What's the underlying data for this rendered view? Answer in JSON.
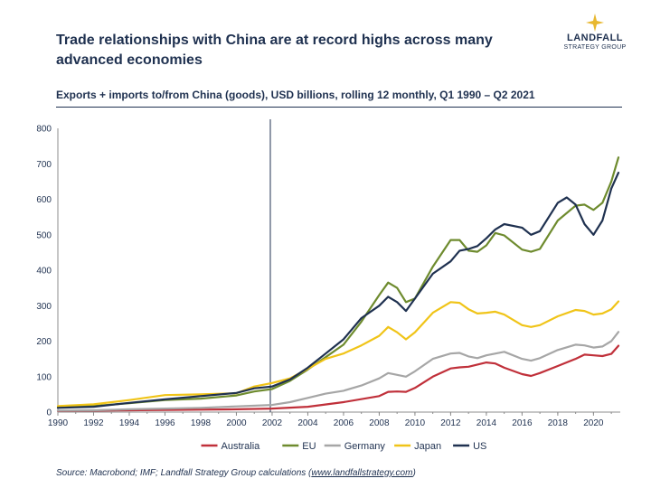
{
  "header": {
    "title": "Trade relationships with China are at record highs across many advanced economies",
    "subtitle": "Exports + imports to/from China (goods), USD billions, rolling 12 monthly, Q1 1990 – Q2 2021"
  },
  "logo": {
    "name": "LANDFALL",
    "tagline": "STRATEGY GROUP",
    "icon": "star-icon",
    "accent": "#e8b830"
  },
  "footer": {
    "source_prefix": "Source: Macrobond; IMF; Landfall Strategy Group calculations (",
    "source_link": "www.landfallstrategy.com",
    "source_suffix": ")"
  },
  "chart_data": {
    "type": "line",
    "title": "",
    "xlabel": "",
    "ylabel": "",
    "xlim": [
      1990,
      2021.5
    ],
    "ylim": [
      0,
      800
    ],
    "x_ticks": [
      "1990",
      "1992",
      "1994",
      "1996",
      "1998",
      "2000",
      "2002",
      "2004",
      "2006",
      "2008",
      "2010",
      "2012",
      "2014",
      "2016",
      "2018",
      "2020"
    ],
    "y_ticks": [
      "0",
      "100",
      "200",
      "300",
      "400",
      "500",
      "600",
      "700",
      "800"
    ],
    "grid": false,
    "legend_position": "bottom",
    "annotations": [
      {
        "type": "vertical-line",
        "x": 2001.9
      }
    ],
    "series": [
      {
        "name": "Australia",
        "color": "#c0303a",
        "x": [
          1990,
          1992,
          1994,
          1996,
          1998,
          2000,
          2002,
          2004,
          2006,
          2008,
          2008.5,
          2009,
          2009.5,
          2010,
          2011,
          2012,
          2012.5,
          2013,
          2014,
          2014.5,
          2015,
          2016,
          2016.5,
          2017,
          2018,
          2019,
          2019.5,
          2020,
          2020.5,
          2021,
          2021.4
        ],
        "y": [
          3,
          4,
          5,
          6,
          7,
          8,
          10,
          15,
          28,
          45,
          57,
          58,
          57,
          68,
          100,
          123,
          126,
          128,
          140,
          137,
          125,
          107,
          102,
          110,
          130,
          150,
          162,
          160,
          158,
          164,
          187
        ]
      },
      {
        "name": "EU",
        "color": "#6e8b2e",
        "x": [
          1990,
          1992,
          1994,
          1996,
          1998,
          2000,
          2001,
          2002,
          2003,
          2004,
          2005,
          2006,
          2007,
          2008,
          2008.5,
          2009,
          2009.5,
          2010,
          2011,
          2012,
          2012.5,
          2013,
          2013.5,
          2014,
          2014.5,
          2015,
          2016,
          2016.5,
          2017,
          2018,
          2019,
          2019.5,
          2020,
          2020.5,
          2021,
          2021.4
        ],
        "y": [
          14,
          17,
          25,
          34,
          38,
          47,
          58,
          65,
          88,
          120,
          155,
          190,
          255,
          330,
          365,
          350,
          310,
          320,
          410,
          485,
          485,
          455,
          452,
          470,
          505,
          498,
          458,
          452,
          460,
          540,
          582,
          585,
          570,
          590,
          650,
          718
        ]
      },
      {
        "name": "Germany",
        "color": "#a6a6a6",
        "x": [
          1990,
          1992,
          1994,
          1996,
          1998,
          2000,
          2002,
          2003,
          2004,
          2005,
          2006,
          2007,
          2008,
          2008.5,
          2009,
          2009.5,
          2010,
          2011,
          2012,
          2012.5,
          2013,
          2013.5,
          2014,
          2015,
          2016,
          2016.5,
          2017,
          2018,
          2019,
          2019.5,
          2020,
          2020.5,
          2021,
          2021.4
        ],
        "y": [
          4,
          5,
          8,
          10,
          12,
          16,
          20,
          28,
          40,
          52,
          60,
          75,
          95,
          110,
          105,
          100,
          115,
          150,
          165,
          167,
          157,
          152,
          160,
          170,
          150,
          145,
          152,
          175,
          190,
          188,
          182,
          185,
          200,
          226
        ]
      },
      {
        "name": "Japan",
        "color": "#f0c418",
        "x": [
          1990,
          1992,
          1994,
          1996,
          1998,
          2000,
          2001,
          2002,
          2003,
          2004,
          2005,
          2006,
          2007,
          2008,
          2008.5,
          2009,
          2009.5,
          2010,
          2011,
          2012,
          2012.5,
          2013,
          2013.5,
          2014,
          2014.5,
          2015,
          2016,
          2016.5,
          2017,
          2018,
          2019,
          2019.5,
          2020,
          2020.5,
          2021,
          2021.4
        ],
        "y": [
          17,
          22,
          34,
          48,
          50,
          53,
          72,
          82,
          95,
          122,
          150,
          165,
          188,
          215,
          240,
          225,
          205,
          225,
          280,
          310,
          308,
          290,
          278,
          280,
          283,
          275,
          245,
          240,
          245,
          270,
          288,
          285,
          275,
          278,
          290,
          312
        ]
      },
      {
        "name": "US",
        "color": "#1f3150",
        "x": [
          1990,
          1992,
          1994,
          1996,
          1998,
          2000,
          2001,
          2002,
          2003,
          2004,
          2005,
          2006,
          2007,
          2008,
          2008.5,
          2009,
          2009.5,
          2010,
          2011,
          2012,
          2012.5,
          2013,
          2013.5,
          2014,
          2014.5,
          2015,
          2016,
          2016.5,
          2017,
          2018,
          2018.5,
          2019,
          2019.5,
          2020,
          2020.5,
          2021,
          2021.4
        ],
        "y": [
          12,
          15,
          26,
          36,
          45,
          54,
          67,
          72,
          92,
          125,
          165,
          205,
          265,
          300,
          325,
          310,
          285,
          320,
          390,
          425,
          455,
          460,
          468,
          490,
          515,
          530,
          520,
          500,
          510,
          590,
          605,
          585,
          530,
          500,
          540,
          630,
          675
        ]
      }
    ]
  }
}
